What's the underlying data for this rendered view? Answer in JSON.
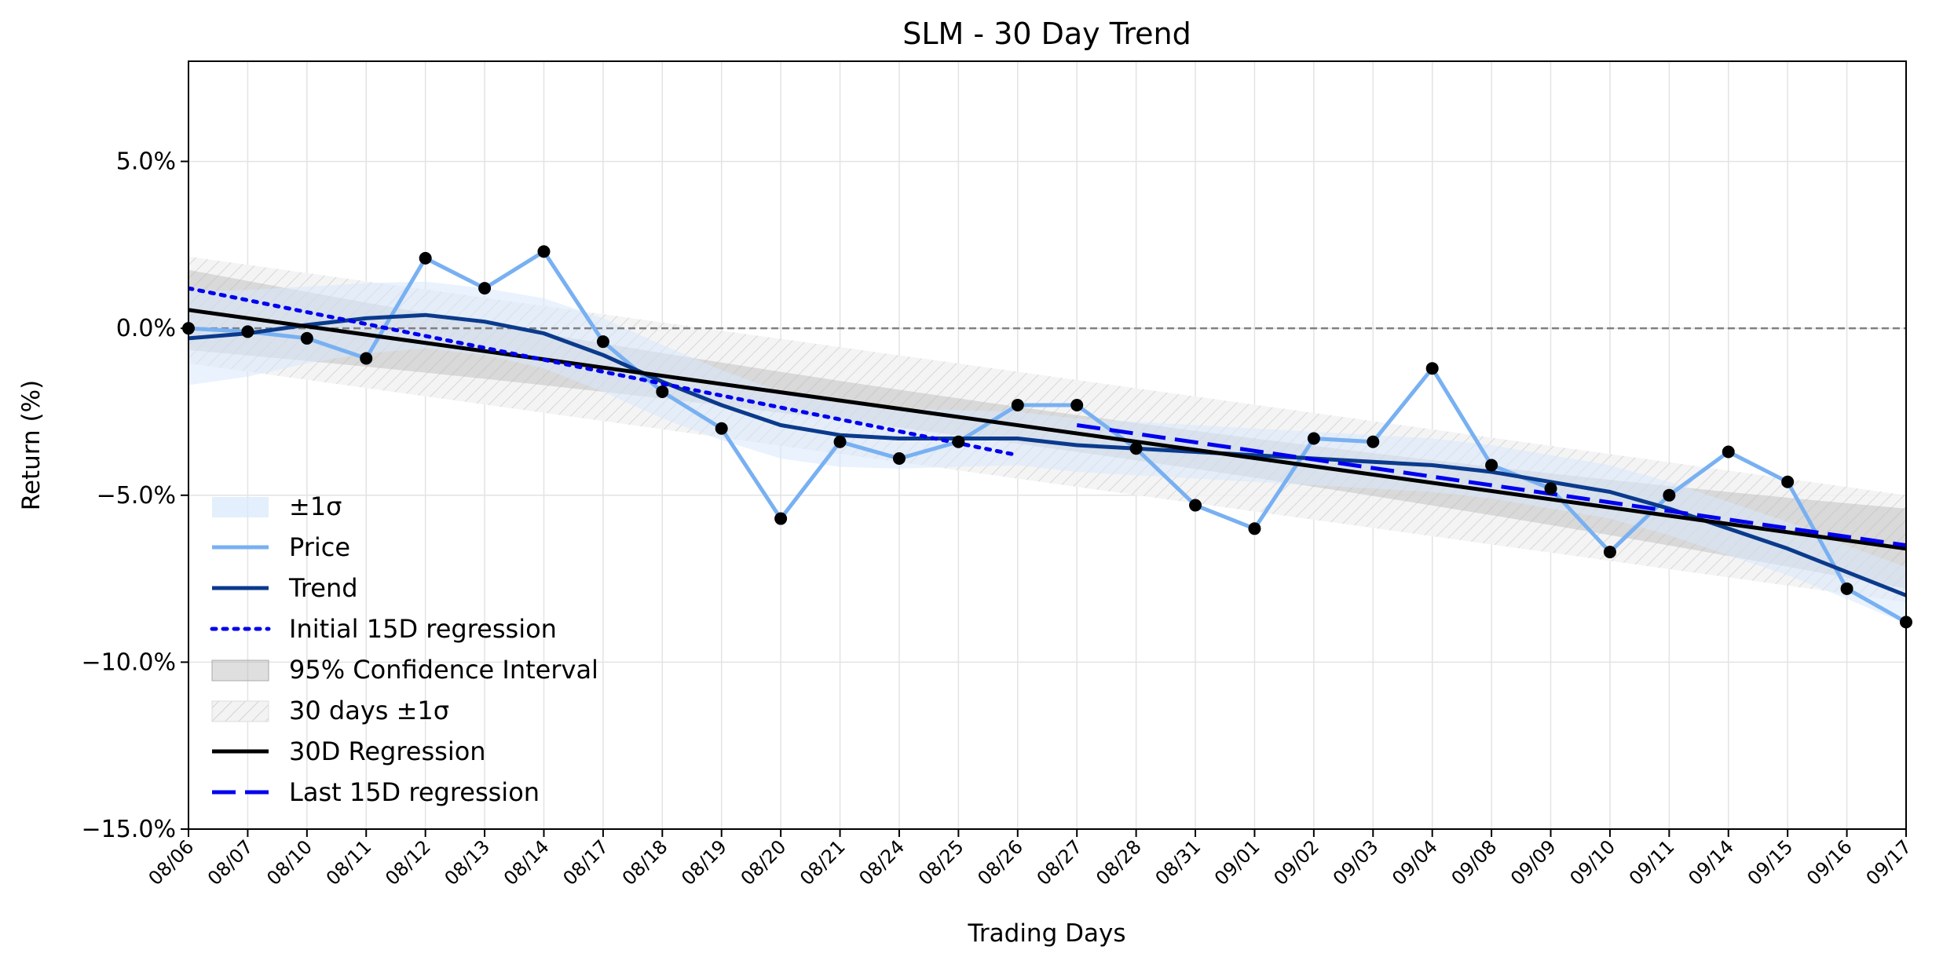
{
  "chart_data": {
    "type": "line",
    "title": "SLM - 30 Day Trend",
    "xlabel": "Trading Days",
    "ylabel": "Return (%)",
    "ylim": [
      -15,
      8
    ],
    "yticks": [
      5,
      0,
      -5,
      -10,
      -15
    ],
    "ytick_labels": [
      "5.0%",
      "0.0%",
      "−5.0%",
      "−10.0%",
      "−15.0%"
    ],
    "grid": true,
    "legend_position": "lower-left",
    "categories": [
      "08/06",
      "08/07",
      "08/10",
      "08/11",
      "08/12",
      "08/13",
      "08/14",
      "08/17",
      "08/18",
      "08/19",
      "08/20",
      "08/21",
      "08/24",
      "08/25",
      "08/26",
      "08/27",
      "08/28",
      "08/31",
      "09/01",
      "09/02",
      "09/03",
      "09/04",
      "09/08",
      "09/09",
      "09/10",
      "09/11",
      "09/14",
      "09/15",
      "09/16",
      "09/17"
    ],
    "series": [
      {
        "name": "Price",
        "color": "#78b0f2",
        "values": [
          0.0,
          -0.1,
          -0.3,
          -0.9,
          2.1,
          1.2,
          2.3,
          -0.4,
          -1.9,
          -3.0,
          -5.7,
          -3.4,
          -3.9,
          -3.4,
          -2.3,
          -2.3,
          -3.6,
          -5.3,
          -6.0,
          -3.3,
          -3.4,
          -1.2,
          -4.1,
          -4.8,
          -6.7,
          -5.0,
          -3.7,
          -4.6,
          -7.8,
          -8.8
        ]
      },
      {
        "name": "Trend",
        "color": "#0b3a8c",
        "values": [
          -0.3,
          -0.15,
          0.1,
          0.3,
          0.4,
          0.2,
          -0.15,
          -0.8,
          -1.6,
          -2.3,
          -2.9,
          -3.2,
          -3.3,
          -3.3,
          -3.3,
          -3.5,
          -3.6,
          -3.7,
          -3.8,
          -3.9,
          -4.0,
          -4.1,
          -4.3,
          -4.6,
          -4.9,
          -5.4,
          -6.0,
          -6.6,
          -7.3,
          -8.0
        ]
      },
      {
        "name": "30D Regression",
        "color": "#000000",
        "start": 0.55,
        "end": -6.6
      },
      {
        "name": "Initial 15D regression",
        "color": "#0000ee",
        "style": "dotted",
        "start": 1.2,
        "end": -3.8
      },
      {
        "name": "Last 15D regression",
        "color": "#0000ee",
        "style": "dashed",
        "start": -2.9,
        "end": -6.5
      }
    ],
    "bands": {
      "sigma": {
        "name": "±1σ",
        "color": "#d7e8fb",
        "half_width": [
          1.4,
          1.3,
          1.15,
          1.05,
          1.0,
          1.0,
          1.05,
          1.1,
          1.1,
          1.05,
          1.0,
          0.95,
          0.9,
          0.85,
          0.8,
          0.8,
          0.8,
          0.8,
          0.8,
          0.8,
          0.8,
          0.8,
          0.8,
          0.8,
          0.8,
          0.8,
          0.8,
          0.8,
          0.8,
          0.85
        ]
      },
      "ci95": {
        "name": "95% Confidence Interval",
        "color": "#b8b8b8",
        "half_width_start": 1.2,
        "half_width_mid": 0.55,
        "half_width_end": 1.2
      },
      "days30": {
        "name": "30 days ±1σ",
        "color": "#cccccc",
        "half_width": 1.6
      }
    },
    "reference_line": {
      "y": 0,
      "color": "#808080",
      "style": "dashed"
    },
    "legend": [
      "±1σ",
      "Price",
      "Trend",
      "Initial 15D regression",
      "95% Confidence Interval",
      "30 days ±1σ",
      "30D Regression",
      "Last 15D regression"
    ]
  }
}
